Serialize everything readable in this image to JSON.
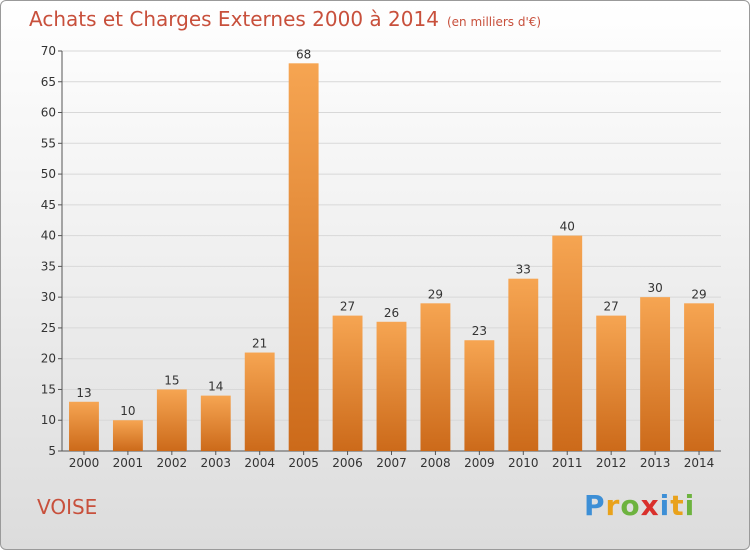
{
  "header": {
    "title": "Achats et Charges Externes 2000 à 2014",
    "unit": "(en milliers d'€)"
  },
  "footer": {
    "commune": "VOISE",
    "logo_text": "Proxiti"
  },
  "colors": {
    "bar_light": "#f6a552",
    "bar_dark": "#cc6a1a",
    "title": "#c8503c",
    "grid": "#d8d8d8"
  },
  "chart_data": {
    "type": "bar",
    "title": "Achats et Charges Externes 2000 à 2014",
    "subtitle": "(en milliers d'€)",
    "categories": [
      "2000",
      "2001",
      "2002",
      "2003",
      "2004",
      "2005",
      "2006",
      "2007",
      "2008",
      "2009",
      "2010",
      "2011",
      "2012",
      "2013",
      "2014"
    ],
    "values": [
      13,
      10,
      15,
      14,
      21,
      68,
      27,
      26,
      29,
      23,
      33,
      40,
      27,
      30,
      29
    ],
    "ylim": [
      5,
      70
    ],
    "yticks": [
      5,
      10,
      15,
      20,
      25,
      30,
      35,
      40,
      45,
      50,
      55,
      60,
      65,
      70
    ],
    "grid": true,
    "xlabel": "",
    "ylabel": ""
  }
}
